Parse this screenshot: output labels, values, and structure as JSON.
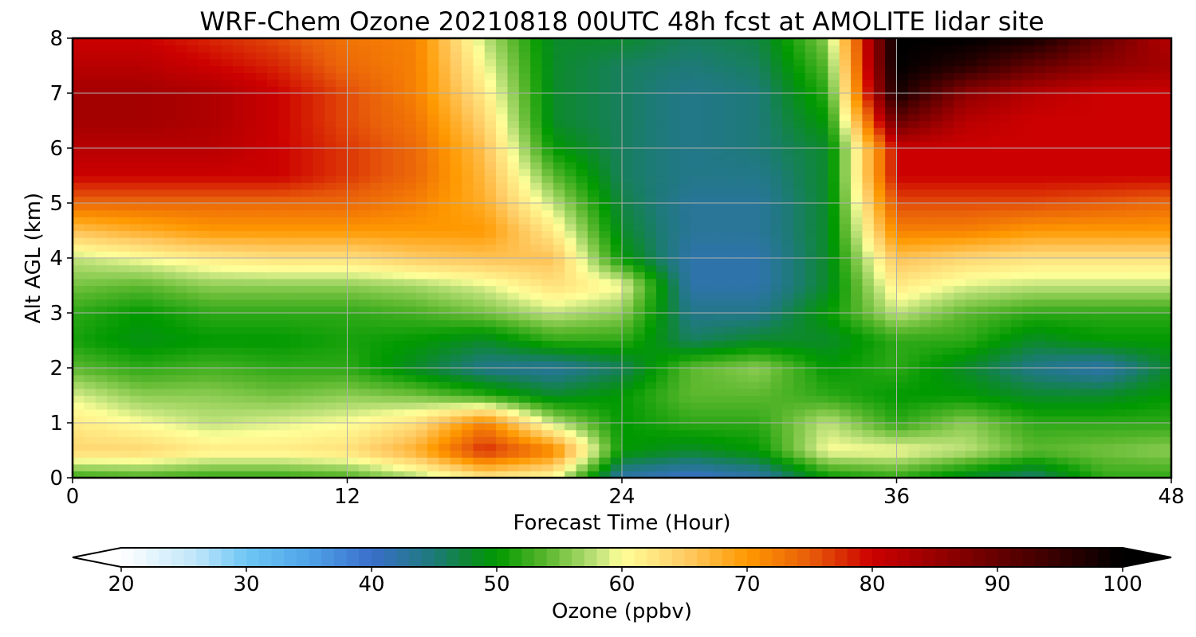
{
  "chart_data": {
    "type": "heatmap",
    "title": "WRF-Chem Ozone  20210818 00UTC 48h fcst at AMOLITE lidar site",
    "xlabel": "Forecast Time (Hour)",
    "ylabel": "Alt AGL (km)",
    "xlim": [
      0,
      48
    ],
    "ylim": [
      0,
      8
    ],
    "x_ticks": [
      "0",
      "12",
      "24",
      "36",
      "48"
    ],
    "y_ticks": [
      "0",
      "1",
      "2",
      "3",
      "4",
      "5",
      "6",
      "7",
      "8"
    ],
    "grid": true,
    "colorbar": {
      "label": "Ozone  (ppbv)",
      "range": [
        20,
        100
      ],
      "extend": "both",
      "orientation": "horizontal",
      "placement": "bottom",
      "ticks": [
        "20",
        "30",
        "40",
        "50",
        "60",
        "70",
        "80",
        "90",
        "100"
      ],
      "color_stops": [
        {
          "value": 20,
          "color": "#ffffff"
        },
        {
          "value": 26,
          "color": "#bfe6fa"
        },
        {
          "value": 30,
          "color": "#6ec6f4"
        },
        {
          "value": 35,
          "color": "#4fa3e8"
        },
        {
          "value": 40,
          "color": "#3a6fcb"
        },
        {
          "value": 45,
          "color": "#1d7a78"
        },
        {
          "value": 48,
          "color": "#0c8a2a"
        },
        {
          "value": 50,
          "color": "#009900"
        },
        {
          "value": 54,
          "color": "#5cb82e"
        },
        {
          "value": 58,
          "color": "#bfe27a"
        },
        {
          "value": 60,
          "color": "#ffff99"
        },
        {
          "value": 65,
          "color": "#ffcc66"
        },
        {
          "value": 70,
          "color": "#ff9900"
        },
        {
          "value": 75,
          "color": "#e85d0a"
        },
        {
          "value": 80,
          "color": "#cc0000"
        },
        {
          "value": 90,
          "color": "#660000"
        },
        {
          "value": 100,
          "color": "#000000"
        }
      ]
    },
    "times": [
      0,
      3,
      6,
      9,
      12,
      15,
      18,
      21,
      24,
      27,
      30,
      33,
      36,
      39,
      42,
      45,
      48
    ],
    "altitudes": [
      0,
      0.5,
      1,
      1.5,
      2,
      2.5,
      3,
      3.5,
      4,
      4.5,
      5,
      5.5,
      6,
      6.5,
      7,
      7.5,
      8
    ],
    "values": [
      [
        52,
        53,
        52,
        52,
        53,
        57,
        62,
        60,
        42,
        40,
        42,
        50,
        52,
        48,
        45,
        52,
        52
      ],
      [
        64,
        64,
        62,
        62,
        63,
        68,
        78,
        72,
        50,
        48,
        50,
        60,
        60,
        58,
        54,
        55,
        56
      ],
      [
        62,
        60,
        58,
        59,
        60,
        63,
        72,
        58,
        50,
        52,
        52,
        58,
        52,
        56,
        52,
        52,
        52
      ],
      [
        59,
        56,
        56,
        55,
        56,
        55,
        52,
        48,
        50,
        54,
        54,
        52,
        50,
        50,
        48,
        48,
        50
      ],
      [
        54,
        52,
        53,
        52,
        52,
        48,
        44,
        43,
        46,
        54,
        56,
        50,
        52,
        48,
        44,
        42,
        48
      ],
      [
        51,
        49,
        50,
        50,
        51,
        50,
        48,
        52,
        52,
        46,
        48,
        48,
        52,
        52,
        48,
        50,
        50
      ],
      [
        52,
        50,
        52,
        52,
        52,
        53,
        55,
        58,
        56,
        44,
        44,
        50,
        58,
        54,
        52,
        52,
        52
      ],
      [
        55,
        54,
        56,
        56,
        56,
        57,
        59,
        63,
        60,
        42,
        42,
        48,
        62,
        59,
        58,
        58,
        58
      ],
      [
        58,
        60,
        62,
        63,
        63,
        65,
        66,
        66,
        50,
        42,
        42,
        48,
        66,
        64,
        63,
        63,
        63
      ],
      [
        66,
        68,
        70,
        70,
        70,
        70,
        70,
        62,
        48,
        43,
        43,
        48,
        72,
        72,
        70,
        70,
        70
      ],
      [
        74,
        74,
        74,
        74,
        74,
        72,
        68,
        58,
        47,
        43,
        43,
        48,
        76,
        76,
        76,
        75,
        74
      ],
      [
        80,
        80,
        80,
        80,
        77,
        74,
        67,
        54,
        46,
        44,
        44,
        48,
        80,
        80,
        80,
        80,
        80
      ],
      [
        82,
        82,
        82,
        80,
        77,
        74,
        66,
        50,
        46,
        44,
        45,
        48,
        80,
        80,
        80,
        80,
        80
      ],
      [
        84,
        84,
        83,
        80,
        76,
        73,
        64,
        48,
        46,
        44,
        45,
        50,
        90,
        82,
        80,
        80,
        80
      ],
      [
        84,
        84,
        83,
        80,
        76,
        72,
        62,
        48,
        46,
        44,
        45,
        52,
        98,
        86,
        82,
        80,
        80
      ],
      [
        82,
        82,
        80,
        78,
        74,
        72,
        60,
        48,
        46,
        45,
        46,
        54,
        100,
        96,
        90,
        86,
        84
      ],
      [
        80,
        80,
        78,
        76,
        73,
        72,
        58,
        48,
        48,
        46,
        47,
        56,
        100,
        100,
        98,
        90,
        82
      ]
    ]
  }
}
